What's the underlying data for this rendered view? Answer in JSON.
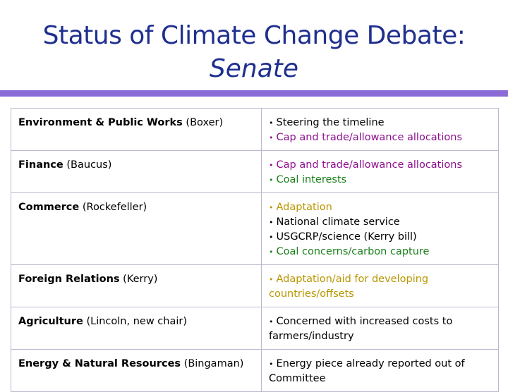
{
  "title": {
    "line1": "Status of Climate Change Debate:",
    "line2": "Senate"
  },
  "rows": [
    {
      "committee": "Environment & Public Works",
      "chair": " (Boxer)",
      "issues": [
        {
          "text": "Steering the timeline",
          "color": "#000000"
        },
        {
          "text": "Cap and trade/allowance allocations",
          "color": "#8e0f8e"
        }
      ]
    },
    {
      "committee": "Finance",
      "chair": " (Baucus)",
      "issues": [
        {
          "text": "Cap and trade/allowance allocations",
          "color": "#8e0f8e"
        },
        {
          "text": "Coal interests",
          "color": "#1a7f1a"
        }
      ]
    },
    {
      "committee": "Commerce",
      "chair": " (Rockefeller)",
      "issues": [
        {
          "text": "Adaptation",
          "color": "#b89600"
        },
        {
          "text": "National climate service",
          "color": "#000000"
        },
        {
          "text": "USGCRP/science (Kerry bill)",
          "color": "#000000"
        },
        {
          "text": "Coal concerns/carbon capture",
          "color": "#1a7f1a"
        }
      ]
    },
    {
      "committee": "Foreign Relations",
      "chair": " (Kerry)",
      "issues": [
        {
          "text": "Adaptation/aid for developing countries/offsets",
          "color": "#b89600"
        }
      ]
    },
    {
      "committee": "Agriculture",
      "chair": " (Lincoln, new chair)",
      "issues": [
        {
          "text": "Concerned with increased costs to farmers/industry",
          "color": "#000000"
        }
      ]
    },
    {
      "committee": "Energy & Natural Resources",
      "chair": " (Bingaman)",
      "issues": [
        {
          "text": "Energy piece already reported out of Committee",
          "color": "#000000"
        }
      ]
    }
  ],
  "colors": {
    "title": "#1f2f8f",
    "rule": "#8a6bd6",
    "border": "#b9b9cf"
  }
}
